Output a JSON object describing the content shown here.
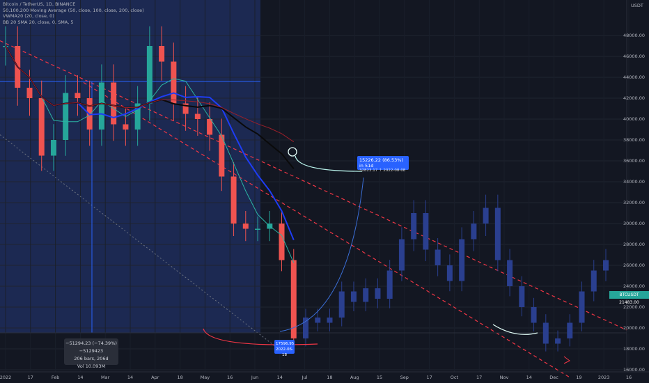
{
  "legend": {
    "symbol_line": "Bitcoin / TetherUS, 1D, BINANCE",
    "ma_line": "50,100,200 Moving Average (50, close, 100, close, 200, close)",
    "ema_line": "VWMA20 (20, close, 0)",
    "bb_line": "BB 20 SMA 20, close, 0, SMA, 5"
  },
  "quote_currency": "USDT",
  "price_tag": "BTCUSDT 21483.00",
  "callout_up": {
    "line1": "15226.22 (86.53%) in 51d",
    "line2": "32823.17 ↑ 2022-08-08"
  },
  "callout_low": {
    "line1": "17596.95",
    "line2": "2022-06-18"
  },
  "measure": {
    "line1": "−51294.23 (−74.39%) −5129423",
    "line2": "206 bars, 206d",
    "line3": "Vol 10.093M"
  },
  "y_ticks": [
    "48000.00",
    "46000.00",
    "44000.00",
    "42000.00",
    "40000.00",
    "38000.00",
    "36000.00",
    "34000.00",
    "32000.00",
    "30000.00",
    "28000.00",
    "26000.00",
    "24000.00",
    "22000.00",
    "20000.00",
    "18000.00",
    "16000.00"
  ],
  "x_ticks": [
    "2022",
    "17",
    "Feb",
    "14",
    "Mar",
    "14",
    "Apr",
    "18",
    "May",
    "16",
    "Jun",
    "14",
    "Jul",
    "18",
    "Aug",
    "15",
    "Sep",
    "17",
    "Oct",
    "17",
    "Nov",
    "14",
    "Dec",
    "19",
    "2023",
    "16"
  ],
  "colors": {
    "background": "#131722",
    "up": "#26a69a",
    "down": "#ef5350",
    "projection": "#2a3f8f",
    "highlight": "#1e2b58",
    "ma_blue": "#1e3df5",
    "ma_black": "#0a0a0a",
    "ma_red": "#9a1f2a",
    "channel": "#f23645"
  },
  "chart_data": {
    "type": "candlestick",
    "symbol": "BTCUSDT",
    "ylim": [
      15000,
      50000
    ],
    "grid": true,
    "x": [
      "2022-01-01",
      "2022-01-08",
      "2022-01-15",
      "2022-01-22",
      "2022-01-29",
      "2022-02-05",
      "2022-02-12",
      "2022-02-19",
      "2022-02-26",
      "2022-03-05",
      "2022-03-12",
      "2022-03-19",
      "2022-03-26",
      "2022-04-02",
      "2022-04-09",
      "2022-04-16",
      "2022-04-23",
      "2022-04-30",
      "2022-05-07",
      "2022-05-14",
      "2022-05-21",
      "2022-05-28",
      "2022-06-04",
      "2022-06-11",
      "2022-06-18",
      "2022-06-25",
      "2022-07-02",
      "2022-07-09",
      "2022-07-16",
      "2022-07-23",
      "2022-07-30",
      "2022-08-06",
      "2022-08-13",
      "2022-08-20",
      "2022-08-27",
      "2022-09-03",
      "2022-09-10",
      "2022-09-17",
      "2022-09-24",
      "2022-10-01",
      "2022-10-08",
      "2022-10-15",
      "2022-10-22",
      "2022-10-29",
      "2022-11-05",
      "2022-11-12",
      "2022-11-19",
      "2022-11-26",
      "2022-12-03",
      "2022-12-10",
      "2022-12-17"
    ],
    "series": [
      {
        "name": "BTCUSDT",
        "values": [
          47000,
          43000,
          42000,
          36500,
          38000,
          42500,
          42000,
          39000,
          43500,
          39500,
          39000,
          41500,
          47000,
          45500,
          41500,
          40500,
          40000,
          38500,
          34500,
          30000,
          29500,
          29500,
          30000,
          26500,
          19000,
          21000,
          20500,
          21000,
          23500,
          22500,
          23800,
          22800,
          25500,
          28500,
          31000,
          27500,
          26000,
          24500,
          28500,
          30000,
          31500,
          26500,
          24000,
          22000,
          20500,
          18500,
          19000,
          20500,
          23500,
          25500,
          26500
        ]
      }
    ],
    "projection_start": "2022-06-18",
    "annotations": [
      {
        "label": "low",
        "value": 17596.95,
        "date": "2022-06-18"
      },
      {
        "label": "peak",
        "value": 32823.17,
        "date": "2022-08-08"
      }
    ]
  }
}
